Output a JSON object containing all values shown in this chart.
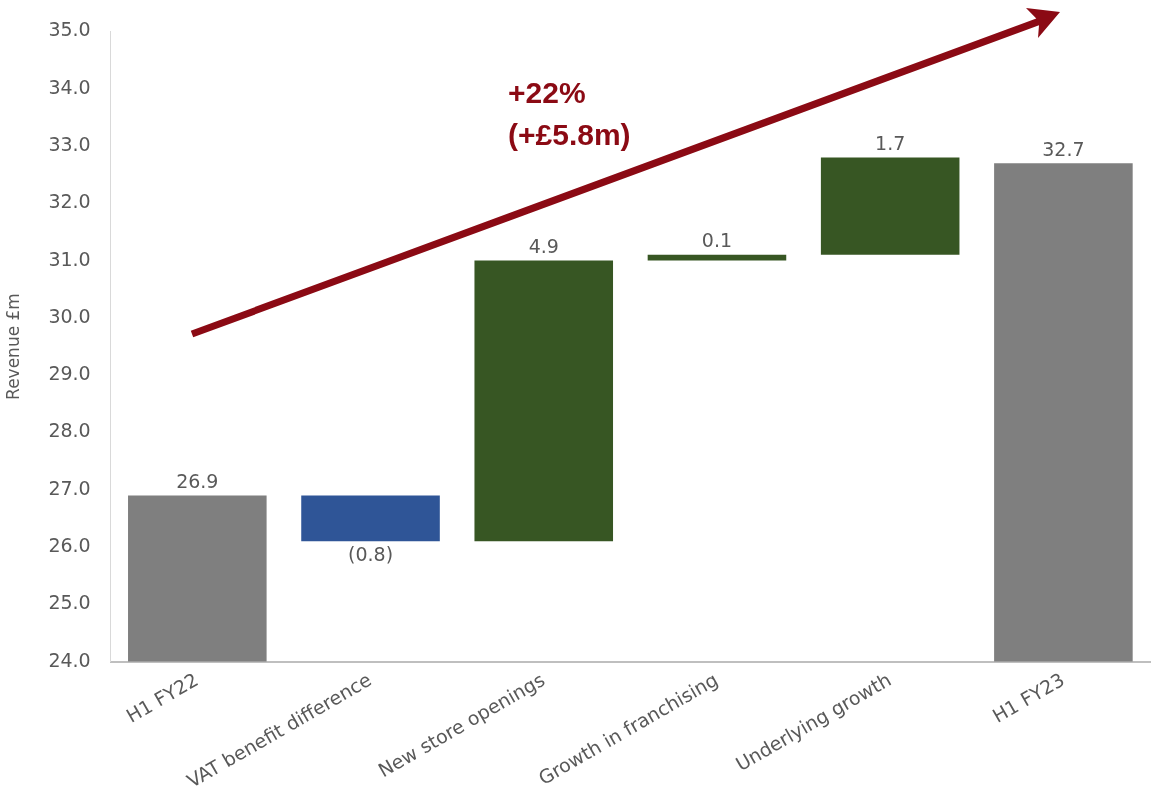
{
  "chart_data": {
    "type": "bar",
    "ylabel": "Revenue £m",
    "categories": [
      "H1 FY22",
      "VAT benefit difference",
      "New store openings",
      "Growth in franchising",
      "Underlying growth",
      "H1 FY23"
    ],
    "values": [
      26.9,
      -0.8,
      4.9,
      0.1,
      1.7,
      32.7
    ],
    "base": [
      0,
      26.9,
      26.1,
      31.0,
      31.1,
      0
    ],
    "colors": [
      "#7f7f7f",
      "#2f5597",
      "#375623",
      "#375623",
      "#375623",
      "#7f7f7f"
    ],
    "value_labels": [
      "26.9",
      "(0.8)",
      "4.9",
      "0.1",
      "1.7",
      "32.7"
    ],
    "ylim": [
      24,
      35
    ],
    "yticks": [
      {
        "value": 24,
        "label": "24.0"
      },
      {
        "value": 25,
        "label": "25.0"
      },
      {
        "value": 26,
        "label": "26.0"
      },
      {
        "value": 27,
        "label": "27.0"
      },
      {
        "value": 28,
        "label": "28.0"
      },
      {
        "value": 29,
        "label": "29.0"
      },
      {
        "value": 30,
        "label": "30.0"
      },
      {
        "value": 31,
        "label": "31.0"
      },
      {
        "value": 32,
        "label": "32.0"
      },
      {
        "value": 33,
        "label": "33.0"
      },
      {
        "value": 34,
        "label": "34.0"
      },
      {
        "value": 35,
        "label": "35.0"
      }
    ],
    "annotations": [
      "+22%",
      "(+£5.8m)"
    ],
    "grid": false,
    "legend": false
  }
}
